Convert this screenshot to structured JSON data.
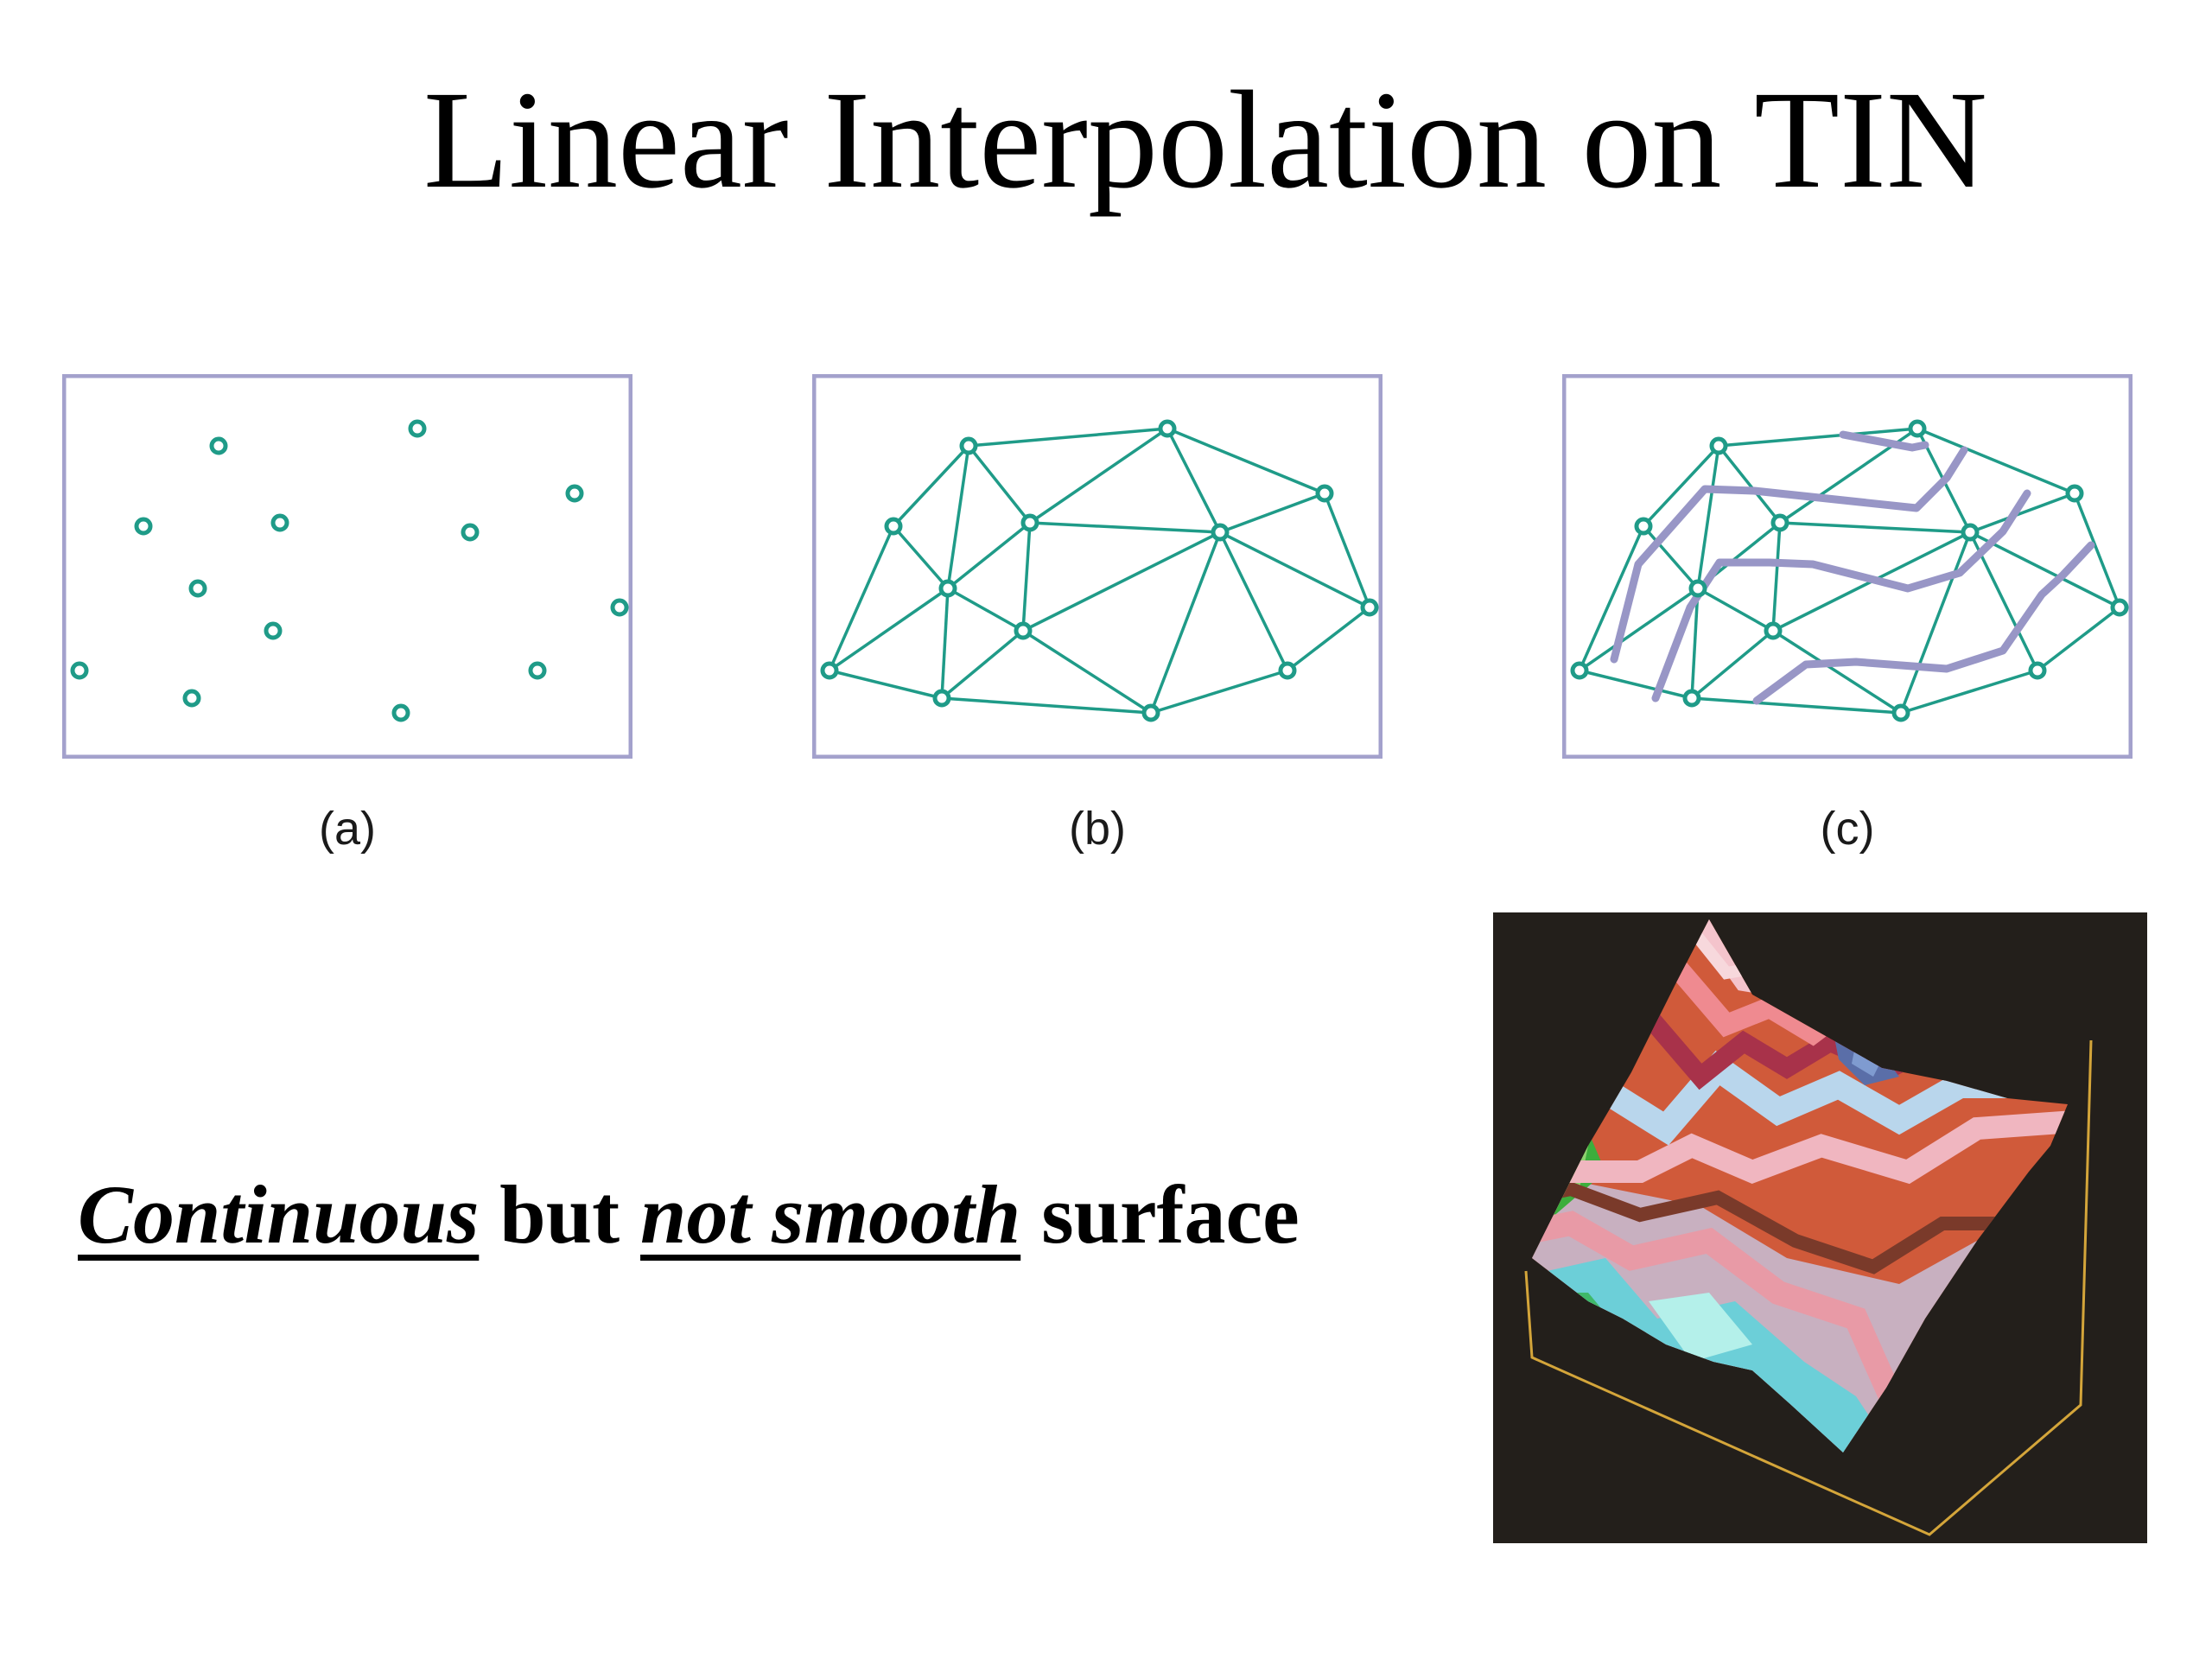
{
  "title": "Linear Interpolation on TIN",
  "panels": [
    {
      "label": "(a)"
    },
    {
      "label": "(b)"
    },
    {
      "label": "(c)"
    }
  ],
  "caption": {
    "part1": "Continuous",
    "part2": " but ",
    "part3": "not smooth",
    "part4": " surface"
  },
  "colors": {
    "frame": "#a3a1cc",
    "network": "#1f9b88",
    "contour": "#9896c6",
    "surface_background": "#231f1b",
    "surface_box": "#d4a53a"
  }
}
